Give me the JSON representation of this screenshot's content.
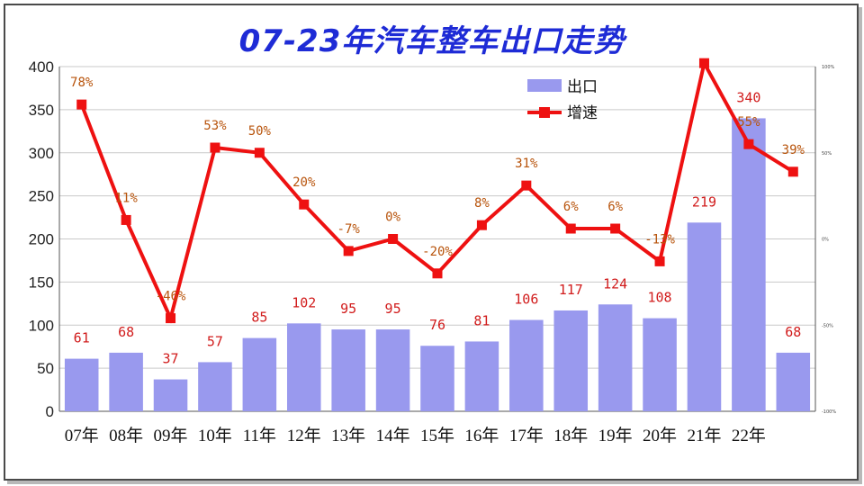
{
  "chart_data": {
    "type": "bar",
    "title": "07-23年汽车整车出口走势",
    "categories": [
      "07年",
      "08年",
      "09年",
      "10年",
      "11年",
      "12年",
      "13年",
      "14年",
      "15年",
      "16年",
      "17年",
      "18年",
      "19年",
      "20年",
      "21年",
      "22年",
      ""
    ],
    "series": [
      {
        "name": "出口",
        "type": "bar",
        "axis": "left",
        "color": "#9999ee",
        "values": [
          61,
          68,
          37,
          57,
          85,
          102,
          95,
          95,
          76,
          81,
          106,
          117,
          124,
          108,
          219,
          340,
          68
        ],
        "labels": [
          "61",
          "68",
          "37",
          "57",
          "85",
          "102",
          "95",
          "95",
          "76",
          "81",
          "106",
          "117",
          "124",
          "108",
          "219",
          "340",
          "68"
        ]
      },
      {
        "name": "增速",
        "type": "line",
        "axis": "right",
        "color": "#ee1111",
        "values": [
          78,
          11,
          -46,
          53,
          50,
          20,
          -7,
          0,
          -20,
          8,
          31,
          6,
          6,
          -13,
          102,
          55,
          39
        ],
        "labels": [
          "78%",
          "11%",
          "-46%",
          "53%",
          "50%",
          "20%",
          "-7%",
          "0%",
          "-20%",
          "8%",
          "31%",
          "6%",
          "6%",
          "-13%",
          "",
          "55%",
          "39%"
        ]
      }
    ],
    "ylim": [
      0,
      400
    ],
    "yticks": [
      "0",
      "50",
      "100",
      "150",
      "200",
      "250",
      "300",
      "350",
      "400"
    ],
    "y2lim": [
      -100,
      100
    ],
    "y2ticks": [
      "-100%",
      "-50%",
      "0%",
      "50%",
      "100%"
    ],
    "legend_position": "top-right",
    "grid": true
  }
}
